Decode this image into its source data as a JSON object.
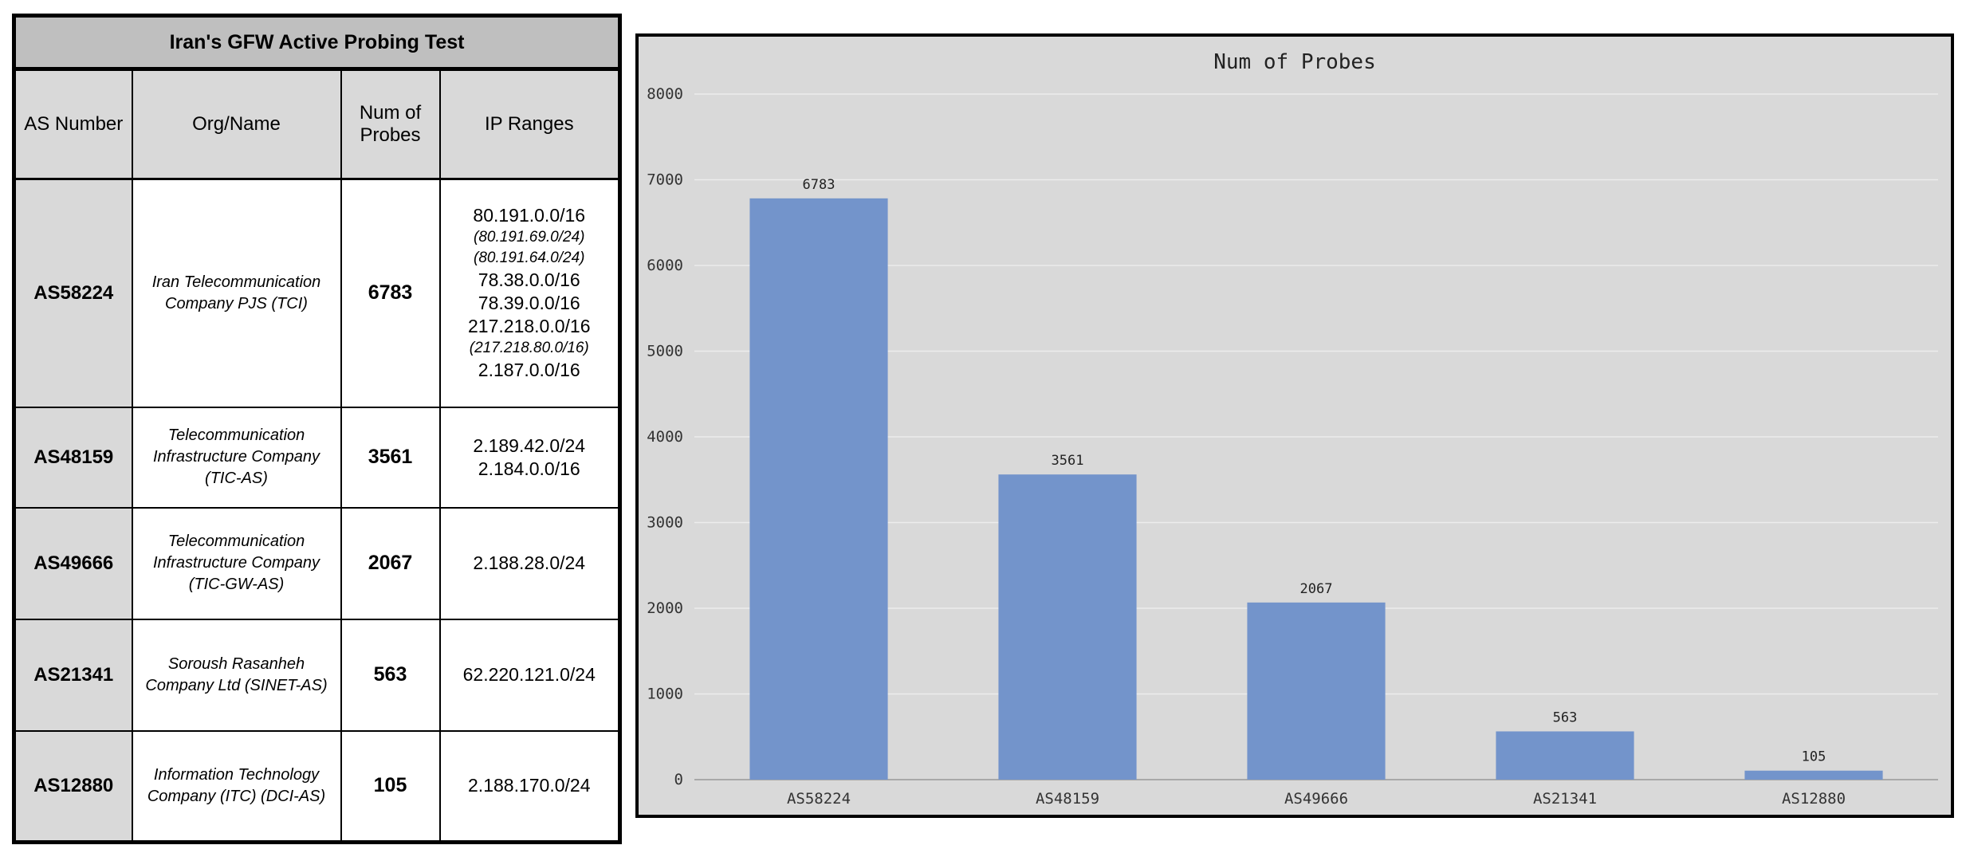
{
  "table": {
    "title": "Iran's GFW Active Probing Test",
    "headers": [
      "AS Number",
      "Org/Name",
      "Num of Probes",
      "IP Ranges"
    ],
    "rows": [
      {
        "as_number": "AS58224",
        "org": "Iran Telecommunication Company PJS (TCI)",
        "probes": "6783",
        "ip_ranges": [
          {
            "text": "80.191.0.0/16",
            "sub": false
          },
          {
            "text": "(80.191.69.0/24)",
            "sub": true
          },
          {
            "text": "(80.191.64.0/24)",
            "sub": true
          },
          {
            "text": "78.38.0.0/16",
            "sub": false
          },
          {
            "text": "78.39.0.0/16",
            "sub": false
          },
          {
            "text": "217.218.0.0/16",
            "sub": false
          },
          {
            "text": "(217.218.80.0/16)",
            "sub": true
          },
          {
            "text": "2.187.0.0/16",
            "sub": false
          }
        ]
      },
      {
        "as_number": "AS48159",
        "org": "Telecommunication Infrastructure Company (TIC-AS)",
        "probes": "3561",
        "ip_ranges": [
          {
            "text": "2.189.42.0/24",
            "sub": false
          },
          {
            "text": "2.184.0.0/16",
            "sub": false
          }
        ]
      },
      {
        "as_number": "AS49666",
        "org": "Telecommunication Infrastructure Company (TIC-GW-AS)",
        "probes": "2067",
        "ip_ranges": [
          {
            "text": "2.188.28.0/24",
            "sub": false
          }
        ]
      },
      {
        "as_number": "AS21341",
        "org": "Soroush Rasanheh Company Ltd (SINET-AS)",
        "probes": "563",
        "ip_ranges": [
          {
            "text": "62.220.121.0/24",
            "sub": false
          }
        ]
      },
      {
        "as_number": "AS12880",
        "org": "Information Technology Company (ITC) (DCI-AS)",
        "probes": "105",
        "ip_ranges": [
          {
            "text": "2.188.170.0/24",
            "sub": false
          }
        ]
      }
    ]
  },
  "chart_data": {
    "type": "bar",
    "title": "Num of Probes",
    "xlabel": "",
    "ylabel": "",
    "categories": [
      "AS58224",
      "AS48159",
      "AS49666",
      "AS21341",
      "AS12880"
    ],
    "values": [
      6783,
      3561,
      2067,
      563,
      105
    ],
    "data_labels": [
      "6783",
      "3561",
      "2067",
      "563",
      "105"
    ],
    "ylim": [
      0,
      8000
    ],
    "yticks": [
      "0",
      "1000",
      "2000",
      "3000",
      "4000",
      "5000",
      "6000",
      "7000",
      "8000"
    ],
    "grid": true,
    "legend": "none",
    "colors": {
      "bar": "#7394cb",
      "background": "#d9d9d9",
      "grid": "#ececec"
    }
  }
}
